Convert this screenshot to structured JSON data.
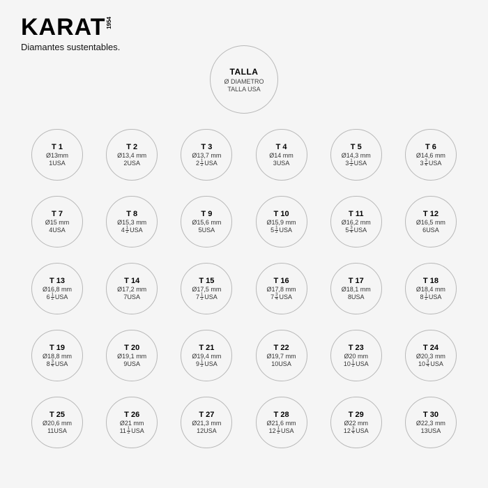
{
  "brand": {
    "name": "KARAT",
    "year": "1954",
    "tagline": "Diamantes sustentables."
  },
  "legend": {
    "title": "TALLA",
    "diameter": "Ø DIAMETRO",
    "usa": "TALLA USA"
  },
  "circle_border_color": "#b8b8b8",
  "background_color": "#f5f5f5",
  "rows": [
    [
      {
        "t": "T 1",
        "d": "Ø13mm",
        "u_pre": "1",
        "u_frac": null,
        "u_suf": " USA"
      },
      {
        "t": "T 2",
        "d": "Ø13,4 mm",
        "u_pre": "2",
        "u_frac": null,
        "u_suf": " USA"
      },
      {
        "t": "T 3",
        "d": "Ø13,7 mm",
        "u_pre": "2",
        "u_frac": [
          "1",
          "2"
        ],
        "u_suf": " USA"
      },
      {
        "t": "T 4",
        "d": "Ø14 mm",
        "u_pre": "3",
        "u_frac": null,
        "u_suf": " USA"
      },
      {
        "t": "T 5",
        "d": "Ø14,3 mm",
        "u_pre": "3",
        "u_frac": [
          "1",
          "2"
        ],
        "u_suf": " USA"
      },
      {
        "t": "T 6",
        "d": "Ø14,6 mm",
        "u_pre": "3",
        "u_frac": [
          "3",
          "4"
        ],
        "u_suf": " USA"
      }
    ],
    [
      {
        "t": "T 7",
        "d": "Ø15 mm",
        "u_pre": "4",
        "u_frac": null,
        "u_suf": " USA"
      },
      {
        "t": "T 8",
        "d": "Ø15,3 mm",
        "u_pre": "4",
        "u_frac": [
          "1",
          "2"
        ],
        "u_suf": " USA"
      },
      {
        "t": "T 9",
        "d": "Ø15,6 mm",
        "u_pre": "5",
        "u_frac": null,
        "u_suf": " USA"
      },
      {
        "t": "T 10",
        "d": "Ø15,9 mm",
        "u_pre": "5",
        "u_frac": [
          "1",
          "2"
        ],
        "u_suf": " USA"
      },
      {
        "t": "T 11",
        "d": "Ø16,2 mm",
        "u_pre": "5",
        "u_frac": [
          "3",
          "4"
        ],
        "u_suf": " USA"
      },
      {
        "t": "T 12",
        "d": "Ø16,5 mm",
        "u_pre": "6",
        "u_frac": null,
        "u_suf": " USA"
      }
    ],
    [
      {
        "t": "T 13",
        "d": "Ø16,8 mm",
        "u_pre": "6",
        "u_frac": [
          "1",
          "2"
        ],
        "u_suf": " USA"
      },
      {
        "t": "T 14",
        "d": "Ø17,2 mm",
        "u_pre": "7",
        "u_frac": null,
        "u_suf": " USA"
      },
      {
        "t": "T 15",
        "d": "Ø17,5 mm",
        "u_pre": "7",
        "u_frac": [
          "1",
          "2"
        ],
        "u_suf": " USA"
      },
      {
        "t": "T 16",
        "d": "Ø17,8 mm",
        "u_pre": "7",
        "u_frac": [
          "3",
          "4"
        ],
        "u_suf": " USA"
      },
      {
        "t": "T 17",
        "d": "Ø18,1 mm",
        "u_pre": "8",
        "u_frac": null,
        "u_suf": " USA"
      },
      {
        "t": "T 18",
        "d": "Ø18,4 mm",
        "u_pre": "8",
        "u_frac": [
          "1",
          "2"
        ],
        "u_suf": " USA"
      }
    ],
    [
      {
        "t": "T 19",
        "d": "Ø18,8 mm",
        "u_pre": "8",
        "u_frac": [
          "3",
          "4"
        ],
        "u_suf": " USA"
      },
      {
        "t": "T 20",
        "d": "Ø19,1 mm",
        "u_pre": "9",
        "u_frac": null,
        "u_suf": " USA"
      },
      {
        "t": "T 21",
        "d": "Ø19,4 mm",
        "u_pre": "9",
        "u_frac": [
          "1",
          "2"
        ],
        "u_suf": " USA"
      },
      {
        "t": "T 22",
        "d": "Ø19,7 mm",
        "u_pre": "10",
        "u_frac": null,
        "u_suf": " USA"
      },
      {
        "t": "T 23",
        "d": "Ø20 mm",
        "u_pre": "10",
        "u_frac": [
          "1",
          "2"
        ],
        "u_suf": " USA"
      },
      {
        "t": "T 24",
        "d": "Ø20,3 mm",
        "u_pre": "10",
        "u_frac": [
          "3",
          "4"
        ],
        "u_suf": " USA"
      }
    ],
    [
      {
        "t": "T 25",
        "d": "Ø20,6 mm",
        "u_pre": "11",
        "u_frac": null,
        "u_suf": " USA"
      },
      {
        "t": "T 26",
        "d": "Ø21 mm",
        "u_pre": "11",
        "u_frac": [
          "1",
          "2"
        ],
        "u_suf": " USA"
      },
      {
        "t": "T 27",
        "d": "Ø21,3 mm",
        "u_pre": "12",
        "u_frac": null,
        "u_suf": " USA"
      },
      {
        "t": "T 28",
        "d": "Ø21,6 mm",
        "u_pre": "12",
        "u_frac": [
          "1",
          "2"
        ],
        "u_suf": " USA"
      },
      {
        "t": "T 29",
        "d": "Ø22 mm",
        "u_pre": "12",
        "u_frac": [
          "3",
          "4"
        ],
        "u_suf": " USA"
      },
      {
        "t": "T 30",
        "d": "Ø22,3 mm",
        "u_pre": "13",
        "u_frac": null,
        "u_suf": " USA"
      }
    ]
  ]
}
